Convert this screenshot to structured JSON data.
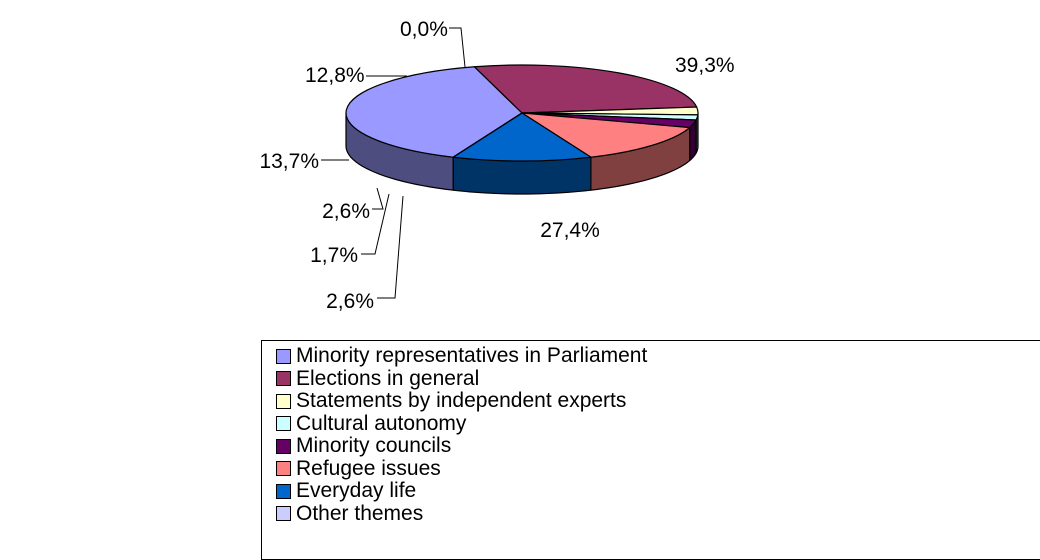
{
  "chart_data": {
    "type": "pie",
    "title": "",
    "legend_position": "bottom",
    "series": [
      {
        "categories": [
          "Minority representatives in Parliament",
          "Elections in general",
          "Statements by independent experts",
          "Cultural autonomy",
          "Minority councils",
          "Refugee issues",
          "Everyday life",
          "Other themes"
        ],
        "values": [
          39.3,
          27.4,
          2.6,
          1.7,
          2.6,
          13.7,
          12.8,
          0.0
        ],
        "labels": [
          "39,3%",
          "27,4%",
          "2,6%",
          "1,7%",
          "2,6%",
          "13,7%",
          "12,8%",
          "0,0%"
        ],
        "colors": [
          "#9999ff",
          "#993366",
          "#ffffcc",
          "#ccffff",
          "#660066",
          "#ff8080",
          "#0066cc",
          "#ccccff"
        ]
      }
    ]
  }
}
